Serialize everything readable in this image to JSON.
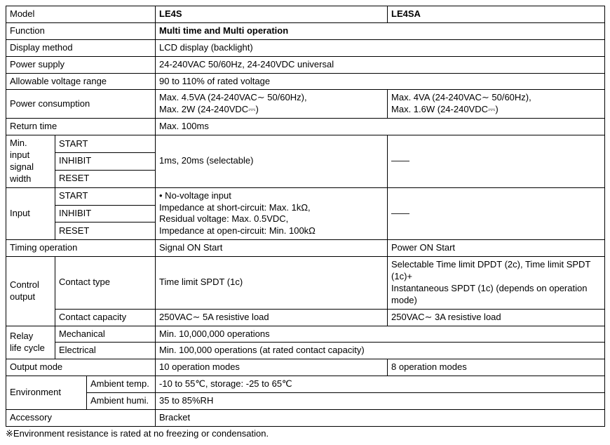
{
  "headers": {
    "model": "Model",
    "le4s": "LE4S",
    "le4sa": "LE4SA"
  },
  "rows": {
    "function": {
      "label": "Function",
      "value": "Multi time and Multi operation"
    },
    "display_method": {
      "label": "Display method",
      "value": "LCD display (backlight)"
    },
    "power_supply": {
      "label": "Power supply",
      "value": "24-240VAC 50/60Hz, 24-240VDC universal"
    },
    "voltage_range": {
      "label": "Allowable voltage range",
      "value": "90 to 110% of rated voltage"
    },
    "power_consumption": {
      "label": "Power consumption",
      "le4s": "Max. 4.5VA (24-240VAC∼ 50/60Hz),\nMax. 2W (24-240VDC⎓)",
      "le4sa": "Max. 4VA (24-240VAC∼ 50/60Hz),\nMax. 1.6W (24-240VDC⎓)"
    },
    "return_time": {
      "label": "Return time",
      "value": "Max. 100ms"
    },
    "min_input": {
      "label": "Min.\ninput\nsignal\nwidth",
      "start": "START",
      "inhibit": "INHIBIT",
      "reset": "RESET",
      "le4s": "1ms, 20ms (selectable)",
      "le4sa": "——"
    },
    "input": {
      "label": "Input",
      "start": "START",
      "inhibit": "INHIBIT",
      "reset": "RESET",
      "le4s": "• No-voltage input\nImpedance at short-circuit: Max. 1kΩ,\nResidual voltage: Max. 0.5VDC,\nImpedance at open-circuit: Min. 100kΩ",
      "le4sa": "——"
    },
    "timing_operation": {
      "label": "Timing operation",
      "le4s": "Signal ON Start",
      "le4sa": "Power ON Start"
    },
    "control_output": {
      "label": "Control\noutput",
      "contact_type": {
        "label": "Contact type",
        "le4s": "Time limit SPDT (1c)",
        "le4sa": "Selectable Time limit DPDT (2c), Time limit SPDT (1c)+\nInstantaneous SPDT (1c) (depends on operation mode)"
      },
      "contact_capacity": {
        "label": "Contact capacity",
        "le4s": "250VAC∼ 5A resistive load",
        "le4sa": "250VAC∼ 3A resistive load"
      }
    },
    "relay": {
      "label": "Relay\nlife cycle",
      "mechanical": {
        "label": "Mechanical",
        "value": "Min. 10,000,000 operations"
      },
      "electrical": {
        "label": "Electrical",
        "value": "Min. 100,000 operations (at rated contact capacity)"
      }
    },
    "output_mode": {
      "label": "Output mode",
      "le4s": "10 operation modes",
      "le4sa": "8 operation modes"
    },
    "environment": {
      "label": "Environment",
      "temp": {
        "label": "Ambient temp.",
        "value": "-10 to 55℃, storage: -25 to 65℃"
      },
      "humi": {
        "label": "Ambient humi.",
        "value": "35 to 85%RH"
      }
    },
    "accessory": {
      "label": "Accessory",
      "value": "Bracket"
    }
  },
  "footnote": "※Environment resistance is rated at no freezing or condensation."
}
